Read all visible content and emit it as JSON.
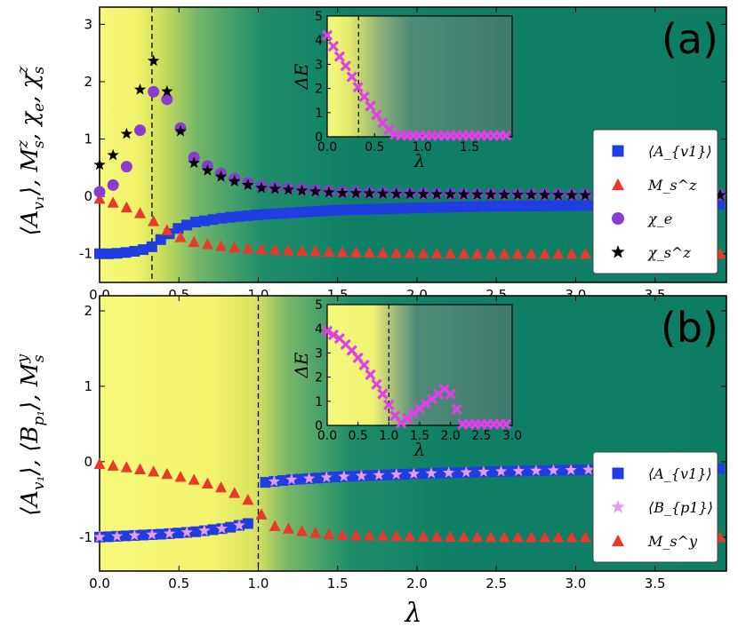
{
  "figure": {
    "x_label": "λ"
  },
  "chart_data": [
    {
      "panel": "(a)",
      "type": "scatter",
      "ylabel": "⟨A_{v1}⟩, M_s^z, χ_e, χ_s^z",
      "xlim": [
        0,
        3.95
      ],
      "ylim": [
        -1.5,
        3.3
      ],
      "x_ticks": [
        "0.0",
        "0.5",
        "1.0",
        "1.5",
        "2.0",
        "2.5",
        "3.0",
        "3.5"
      ],
      "y_ticks": [
        "-1",
        "0",
        "1",
        "2",
        "3"
      ],
      "critical_lambda": 0.33,
      "background": "yellow-to-green gradient",
      "legend_position": "lower-right",
      "series": [
        {
          "name": "⟨A_{v1}⟩",
          "marker": "square",
          "color": "#1f3de0",
          "x": [
            0.0,
            0.08,
            0.16,
            0.24,
            0.32,
            0.4,
            0.5,
            0.6,
            0.8,
            1.0,
            1.5,
            2.0,
            2.5,
            3.0,
            3.5,
            3.95
          ],
          "values": [
            -1.0,
            -1.0,
            -0.98,
            -0.95,
            -0.9,
            -0.72,
            -0.55,
            -0.45,
            -0.37,
            -0.32,
            -0.24,
            -0.2,
            -0.17,
            -0.16,
            -0.15,
            -0.14
          ]
        },
        {
          "name": "M_s^z",
          "marker": "triangle",
          "color": "#e8392a",
          "x": [
            0.0,
            0.1,
            0.2,
            0.3,
            0.4,
            0.5,
            0.6,
            0.8,
            1.0,
            1.5,
            2.0,
            2.5,
            3.0,
            3.5,
            3.95
          ],
          "values": [
            -0.04,
            -0.12,
            -0.22,
            -0.35,
            -0.55,
            -0.7,
            -0.8,
            -0.88,
            -0.92,
            -0.97,
            -0.99,
            -1.0,
            -1.0,
            -1.0,
            -1.0
          ]
        },
        {
          "name": "χ_e",
          "marker": "circle",
          "color": "#8a3bd0",
          "x": [
            0.0,
            0.08,
            0.16,
            0.24,
            0.32,
            0.4,
            0.5,
            0.6,
            0.8,
            1.0,
            1.5,
            2.0,
            2.5,
            3.0,
            3.5,
            3.95
          ],
          "values": [
            0.08,
            0.18,
            0.45,
            1.0,
            1.82,
            1.84,
            1.25,
            0.65,
            0.35,
            0.18,
            0.08,
            0.05,
            0.04,
            0.03,
            0.03,
            0.03
          ]
        },
        {
          "name": "χ_s^z",
          "marker": "star",
          "color": "#000000",
          "x": [
            0.0,
            0.08,
            0.16,
            0.24,
            0.32,
            0.4,
            0.5,
            0.6,
            0.8,
            1.0,
            1.5,
            2.0,
            2.5,
            3.0,
            3.5,
            3.95
          ],
          "values": [
            0.55,
            0.7,
            1.0,
            1.72,
            2.47,
            2.04,
            1.2,
            0.55,
            0.3,
            0.15,
            0.06,
            0.04,
            0.03,
            0.02,
            0.02,
            0.02
          ]
        }
      ],
      "inset": {
        "type": "scatter",
        "xlabel": "λ",
        "ylabel": "ΔE",
        "xlim": [
          0,
          1.95
        ],
        "ylim": [
          0,
          5
        ],
        "x_ticks": [
          "0.0",
          "0.5",
          "1.0",
          "1.5"
        ],
        "y_ticks": [
          "0",
          "1",
          "2",
          "3",
          "4",
          "5"
        ],
        "critical_lambda": 0.33,
        "series": [
          {
            "marker": "x",
            "color": "#e040e8",
            "x": [
              0.0,
              0.1,
              0.2,
              0.3,
              0.4,
              0.5,
              0.6,
              0.7,
              0.8,
              1.0,
              1.2,
              1.4,
              1.6,
              1.8,
              1.9
            ],
            "values": [
              4.2,
              3.5,
              2.9,
              2.2,
              1.6,
              1.0,
              0.5,
              0.1,
              0.05,
              0.05,
              0.05,
              0.05,
              0.05,
              0.05,
              0.05
            ]
          }
        ]
      }
    },
    {
      "panel": "(b)",
      "type": "scatter",
      "ylabel": "⟨A_{v1}⟩, ⟨B_{p1}⟩, M_s^y",
      "xlim": [
        0,
        3.95
      ],
      "ylim": [
        -1.45,
        2.2
      ],
      "x_ticks": [
        "0.0",
        "0.5",
        "1.0",
        "1.5",
        "2.0",
        "2.5",
        "3.0",
        "3.5"
      ],
      "y_ticks": [
        "-1",
        "0",
        "1",
        "2"
      ],
      "critical_lambda": 1.0,
      "background": "yellow-to-green gradient",
      "legend_position": "lower-right",
      "series": [
        {
          "name": "⟨A_{v1}⟩",
          "marker": "square",
          "color": "#1f3de0",
          "x": [
            0.0,
            0.2,
            0.4,
            0.6,
            0.8,
            0.98,
            1.02,
            1.2,
            1.5,
            2.0,
            2.5,
            3.0,
            3.5,
            3.95
          ],
          "values": [
            -1.0,
            -0.98,
            -0.96,
            -0.93,
            -0.88,
            -0.8,
            -0.28,
            -0.24,
            -0.2,
            -0.16,
            -0.13,
            -0.11,
            -0.1,
            -0.09
          ]
        },
        {
          "name": "⟨B_{p1}⟩",
          "marker": "star",
          "color": "#e79be8",
          "x": [
            0.0,
            0.2,
            0.4,
            0.6,
            0.8,
            0.98,
            1.02,
            1.2,
            1.5,
            2.0,
            2.5,
            3.0,
            3.5,
            3.95
          ],
          "values": [
            -1.0,
            -0.98,
            -0.96,
            -0.93,
            -0.88,
            -0.8,
            -0.28,
            -0.24,
            -0.2,
            -0.16,
            -0.13,
            -0.11,
            -0.1,
            -0.09
          ]
        },
        {
          "name": "M_s^y",
          "marker": "triangle",
          "color": "#e8392a",
          "x": [
            0.0,
            0.2,
            0.4,
            0.6,
            0.8,
            0.95,
            1.0,
            1.1,
            1.3,
            1.5,
            2.0,
            2.5,
            3.0,
            3.5,
            3.95
          ],
          "values": [
            -0.03,
            -0.08,
            -0.15,
            -0.24,
            -0.36,
            -0.52,
            -0.66,
            -0.85,
            -0.93,
            -0.97,
            -0.99,
            -1.0,
            -1.0,
            -1.0,
            -1.0
          ]
        }
      ],
      "inset": {
        "type": "scatter",
        "xlabel": "λ",
        "ylabel": "ΔE",
        "xlim": [
          0,
          3.0
        ],
        "ylim": [
          0,
          5
        ],
        "x_ticks": [
          "0.0",
          "0.5",
          "1.0",
          "1.5",
          "2.0",
          "2.5",
          "3.0"
        ],
        "y_ticks": [
          "0",
          "1",
          "2",
          "3",
          "4",
          "5"
        ],
        "critical_lambda": 1.0,
        "series": [
          {
            "marker": "x",
            "color": "#e040e8",
            "x": [
              0.0,
              0.2,
              0.4,
              0.6,
              0.8,
              0.9,
              1.0,
              1.1,
              1.2,
              1.4,
              1.6,
              1.8,
              1.95,
              2.2,
              2.6,
              3.0
            ],
            "values": [
              3.9,
              3.6,
              3.1,
              2.5,
              1.7,
              1.3,
              0.85,
              0.4,
              0.1,
              0.5,
              0.9,
              1.3,
              1.6,
              0.05,
              0.05,
              0.05
            ]
          }
        ]
      }
    }
  ]
}
